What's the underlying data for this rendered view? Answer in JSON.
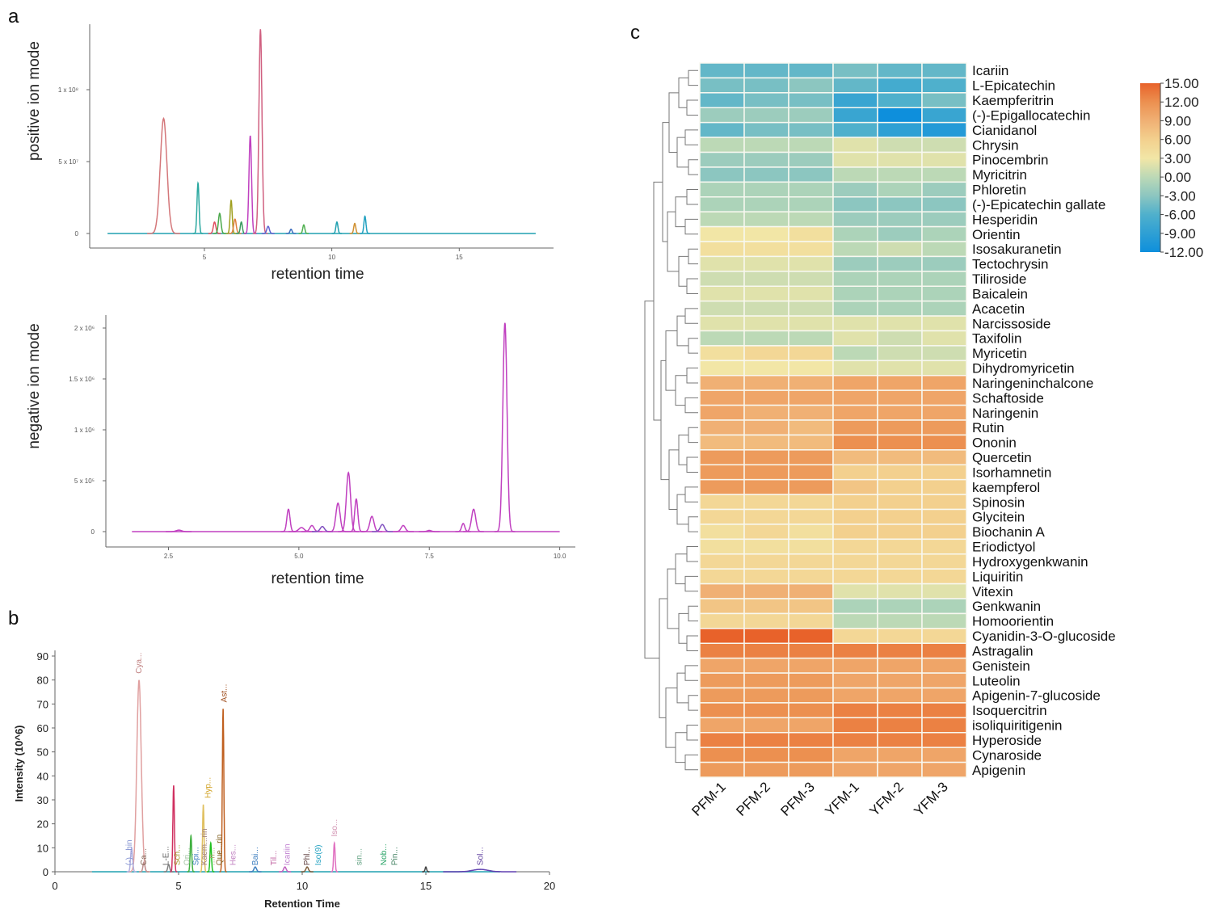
{
  "panels": {
    "a": "a",
    "b": "b",
    "c": "c"
  },
  "chart_data": [
    {
      "type": "line",
      "id": "positive",
      "ylabel": "positive ion mode",
      "xlabel": "retention time",
      "xlim": [
        0.5,
        18.7
      ],
      "ylim": [
        -20000000.0,
        150000000.0
      ],
      "xticks": [
        {
          "v": 5,
          "label": "5"
        },
        {
          "v": 10,
          "label": "10"
        },
        {
          "v": 15,
          "label": "15"
        }
      ],
      "yticks": [
        {
          "v": 0,
          "label": "0"
        },
        {
          "v": 50000000,
          "label": "5 x 10⁷"
        },
        {
          "v": 100000000,
          "label": "1 x 10⁸"
        }
      ],
      "baseline": [
        1.2,
        18
      ],
      "peaks": [
        [
          3.4,
          80000000,
          0.13,
          "#d4777a"
        ],
        [
          4.75,
          35000000,
          0.04,
          "#2aa8a0"
        ],
        [
          5.4,
          8000000,
          0.05,
          "#e05060"
        ],
        [
          5.6,
          14000000,
          0.05,
          "#4aa84a"
        ],
        [
          6.05,
          23000000,
          0.04,
          "#a0a020"
        ],
        [
          6.2,
          10000000,
          0.05,
          "#e08040"
        ],
        [
          6.45,
          8000000,
          0.04,
          "#3a9a60"
        ],
        [
          6.8,
          68000000,
          0.05,
          "#c040c0"
        ],
        [
          7.2,
          142000000,
          0.06,
          "#d06080"
        ],
        [
          7.5,
          5000000,
          0.05,
          "#6060d0"
        ],
        [
          8.4,
          3000000,
          0.04,
          "#4070c0"
        ],
        [
          8.9,
          6000000,
          0.04,
          "#50b050"
        ],
        [
          10.2,
          8000000,
          0.04,
          "#20a0b0"
        ],
        [
          10.9,
          7000000,
          0.04,
          "#d09030"
        ],
        [
          11.3,
          12000000,
          0.04,
          "#20a0c0"
        ]
      ]
    },
    {
      "type": "line",
      "id": "negative",
      "ylabel": "negative ion mode",
      "xlabel": "retention time",
      "xlim": [
        1.3,
        10.3
      ],
      "ylim": [
        -100000,
        2200000
      ],
      "xticks": [
        {
          "v": 2.5,
          "label": "2.5"
        },
        {
          "v": 5,
          "label": "5.0"
        },
        {
          "v": 7.5,
          "label": "7.5"
        },
        {
          "v": 10,
          "label": "10.0"
        }
      ],
      "yticks": [
        {
          "v": 0,
          "label": "0"
        },
        {
          "v": 500000,
          "label": "5 x 10⁵"
        },
        {
          "v": 1000000,
          "label": "1 x 10⁶"
        },
        {
          "v": 1500000,
          "label": "1.5 x 10⁶"
        },
        {
          "v": 2000000,
          "label": "2 x 10⁶"
        }
      ],
      "baseline": [
        1.8,
        10
      ],
      "peaks": [
        [
          2.7,
          15000,
          0.05,
          "#c040c0"
        ],
        [
          4.8,
          220000,
          0.03,
          "#c040c0"
        ],
        [
          5.05,
          40000,
          0.05,
          "#c040c0"
        ],
        [
          5.25,
          60000,
          0.04,
          "#c040c0"
        ],
        [
          5.45,
          50000,
          0.04,
          "#8050c0"
        ],
        [
          5.75,
          280000,
          0.04,
          "#c040c0"
        ],
        [
          5.95,
          580000,
          0.04,
          "#c040c0"
        ],
        [
          6.1,
          320000,
          0.03,
          "#c040c0"
        ],
        [
          6.4,
          150000,
          0.04,
          "#c040c0"
        ],
        [
          6.6,
          70000,
          0.04,
          "#8050c0"
        ],
        [
          7.0,
          60000,
          0.04,
          "#c040c0"
        ],
        [
          7.5,
          12000,
          0.04,
          "#c040c0"
        ],
        [
          8.15,
          80000,
          0.03,
          "#c040c0"
        ],
        [
          8.35,
          220000,
          0.04,
          "#c040c0"
        ],
        [
          8.95,
          2050000,
          0.04,
          "#c040c0"
        ]
      ]
    },
    {
      "type": "line",
      "id": "intensity",
      "ylabel": "Intensity (10^6)",
      "xlabel": "Retention Time",
      "xlim": [
        0,
        20
      ],
      "ylim": [
        0,
        90
      ],
      "xticks": [
        {
          "v": 0,
          "label": "0"
        },
        {
          "v": 5,
          "label": "5"
        },
        {
          "v": 10,
          "label": "10"
        },
        {
          "v": 15,
          "label": "15"
        },
        {
          "v": 20,
          "label": "20"
        }
      ],
      "yticks": [
        {
          "v": 0,
          "label": "0"
        },
        {
          "v": 10,
          "label": "10"
        },
        {
          "v": 20,
          "label": "20"
        },
        {
          "v": 30,
          "label": "30"
        },
        {
          "v": 40,
          "label": "40"
        },
        {
          "v": 50,
          "label": "50"
        },
        {
          "v": 60,
          "label": "60"
        },
        {
          "v": 70,
          "label": "70"
        },
        {
          "v": 80,
          "label": "80"
        },
        {
          "v": 90,
          "label": "90"
        }
      ],
      "baseline": [
        1.5,
        18
      ],
      "peaks": [
        [
          3.4,
          80,
          0.09,
          "#e0a0a0"
        ],
        [
          3.1,
          10,
          0.04,
          "#b0b0e0"
        ],
        [
          3.6,
          4,
          0.04,
          "#c09090"
        ],
        [
          4.6,
          3,
          0.04,
          "#808080"
        ],
        [
          4.8,
          36,
          0.03,
          "#d03060"
        ],
        [
          5.5,
          15,
          0.03,
          "#40b040"
        ],
        [
          6.0,
          28,
          0.03,
          "#e0c060"
        ],
        [
          6.3,
          12,
          0.03,
          "#20c020"
        ],
        [
          6.8,
          68,
          0.03,
          "#c06020"
        ],
        [
          8.1,
          2,
          0.05,
          "#4080c0"
        ],
        [
          9.3,
          2,
          0.05,
          "#c060c0"
        ],
        [
          10.2,
          2,
          0.05,
          "#806040"
        ],
        [
          11.3,
          12,
          0.03,
          "#e070c0"
        ],
        [
          15.0,
          2,
          0.03,
          "#404040"
        ],
        [
          17.2,
          1,
          0.3,
          "#6040b0"
        ]
      ],
      "annotations": [
        {
          "rt": 3.4,
          "y": 82,
          "text": "Cya...",
          "color": "#c08080"
        },
        {
          "rt": 3.0,
          "y": 2,
          "text": "(-)...hin",
          "color": "#8090d0"
        },
        {
          "rt": 3.6,
          "y": 2,
          "text": "Ca...",
          "color": "#806050"
        },
        {
          "rt": 4.5,
          "y": 2,
          "text": "L-E...",
          "color": "#606060"
        },
        {
          "rt": 4.95,
          "y": 2,
          "text": "Sch...",
          "color": "#a09020"
        },
        {
          "rt": 5.35,
          "y": 2,
          "text": "Ori...",
          "color": "#a0c0a0"
        },
        {
          "rt": 5.7,
          "y": 2,
          "text": "Spi...",
          "color": "#4080c0"
        },
        {
          "rt": 6.05,
          "y": 2,
          "text": "Kaem...rin",
          "color": "#a08080"
        },
        {
          "rt": 6.2,
          "y": 30,
          "text": "Hyp...",
          "color": "#d0a020"
        },
        {
          "rt": 6.35,
          "y": 2,
          "text": "...n...",
          "color": "#b0a070"
        },
        {
          "rt": 6.65,
          "y": 2,
          "text": "Que...rin",
          "color": "#806020"
        },
        {
          "rt": 6.85,
          "y": 70,
          "text": "Ast...",
          "color": "#a05020"
        },
        {
          "rt": 7.2,
          "y": 2,
          "text": "Hes...",
          "color": "#c080c0"
        },
        {
          "rt": 8.1,
          "y": 2,
          "text": "Bai...",
          "color": "#4080c0"
        },
        {
          "rt": 8.85,
          "y": 2,
          "text": "Til...",
          "color": "#c060a0"
        },
        {
          "rt": 9.4,
          "y": 2,
          "text": "Icariin",
          "color": "#c080d0"
        },
        {
          "rt": 10.2,
          "y": 2,
          "text": "Phl...",
          "color": "#604040"
        },
        {
          "rt": 10.65,
          "y": 2,
          "text": "Iso(9)",
          "color": "#20a0c0"
        },
        {
          "rt": 11.3,
          "y": 14,
          "text": "Iso...",
          "color": "#d090b0"
        },
        {
          "rt": 12.3,
          "y": 2,
          "text": "sin...",
          "color": "#60a080"
        },
        {
          "rt": 13.3,
          "y": 2,
          "text": "Nob...",
          "color": "#20a060"
        },
        {
          "rt": 13.75,
          "y": 2,
          "text": "Pin...",
          "color": "#408060"
        },
        {
          "rt": 17.2,
          "y": 2,
          "text": "Sol...",
          "color": "#6040a0"
        }
      ]
    },
    {
      "type": "heatmap",
      "id": "heatmap",
      "columns": [
        "PFM-1",
        "PFM-2",
        "PFM-3",
        "YFM-1",
        "YFM-2",
        "YFM-3"
      ],
      "rows": [
        "Icariin",
        "L-Epicatechin",
        "Kaempferitrin",
        "(-)-Epigallocatechin",
        "Cianidanol",
        "Chrysin",
        "Pinocembrin",
        "Myricitrin",
        "Phloretin",
        "(-)-Epicatechin gallate",
        "Hesperidin",
        "Orientin",
        "Isosakuranetin",
        "Tectochrysin",
        "Tiliroside",
        "Baicalein",
        "Acacetin",
        "Narcissoside",
        "Taxifolin",
        "Myricetin",
        "Dihydromyricetin",
        "Naringeninchalcone",
        "Schaftoside",
        "Naringenin",
        "Rutin",
        "Ononin",
        "Quercetin",
        "Isorhamnetin",
        "kaempferol",
        "Spinosin",
        "Glycitein",
        "Biochanin A",
        "Eriodictyol",
        "Hydroxygenkwanin",
        "Liquiritin",
        "Vitexin",
        "Genkwanin",
        "Homoorientin",
        "Cyanidin-3-O-glucoside",
        "Astragalin",
        "Genistein",
        "Luteolin",
        "Apigenin-7-glucoside",
        "Isoquercitrin",
        "isoliquiritigenin",
        "Hyperoside",
        "Cynaroside",
        "Apigenin"
      ],
      "values": [
        [
          -5,
          -5,
          -5,
          -4,
          -5,
          -5
        ],
        [
          -4,
          -4,
          -3,
          -5,
          -7,
          -6
        ],
        [
          -5,
          -4,
          -4,
          -8,
          -6,
          -4
        ],
        [
          -2,
          -2,
          -2,
          -8,
          -12,
          -8
        ],
        [
          -5,
          -4,
          -4,
          -6,
          -9,
          -10
        ],
        [
          0,
          0,
          0,
          2,
          1,
          1
        ],
        [
          -2,
          -2,
          -2,
          2,
          2,
          2
        ],
        [
          -3,
          -3,
          -3,
          0,
          0,
          0
        ],
        [
          -1,
          -1,
          -1,
          -2,
          -1,
          -2
        ],
        [
          -1,
          -1,
          -1,
          -3,
          -3,
          -3
        ],
        [
          0,
          0,
          0,
          -2,
          -2,
          -2
        ],
        [
          3,
          3,
          4,
          -1,
          -2,
          -1
        ],
        [
          4,
          4,
          4,
          0,
          1,
          0
        ],
        [
          2,
          2,
          2,
          -2,
          -2,
          -2
        ],
        [
          1,
          1,
          1,
          -1,
          -1,
          -1
        ],
        [
          2,
          2,
          2,
          -1,
          -1,
          -1
        ],
        [
          1,
          1,
          1,
          -1,
          -1,
          -1
        ],
        [
          2,
          2,
          2,
          2,
          2,
          2
        ],
        [
          0,
          0,
          0,
          2,
          1,
          2
        ],
        [
          4,
          5,
          5,
          0,
          1,
          1
        ],
        [
          3,
          3,
          3,
          2,
          2,
          2
        ],
        [
          9,
          9,
          9,
          10,
          10,
          10
        ],
        [
          10,
          10,
          10,
          10,
          10,
          10
        ],
        [
          10,
          9,
          9,
          10,
          10,
          10
        ],
        [
          9,
          9,
          8,
          11,
          11,
          11
        ],
        [
          8,
          8,
          8,
          12,
          12,
          12
        ],
        [
          11,
          11,
          11,
          8,
          8,
          8
        ],
        [
          11,
          11,
          11,
          6,
          6,
          6
        ],
        [
          11,
          11,
          11,
          7,
          6,
          6
        ],
        [
          5,
          5,
          5,
          6,
          6,
          6
        ],
        [
          5,
          5,
          5,
          6,
          6,
          6
        ],
        [
          4,
          5,
          4,
          6,
          6,
          6
        ],
        [
          4,
          4,
          4,
          5,
          5,
          5
        ],
        [
          5,
          5,
          5,
          5,
          5,
          5
        ],
        [
          5,
          5,
          5,
          5,
          5,
          5
        ],
        [
          9,
          9,
          9,
          2,
          2,
          2
        ],
        [
          7,
          7,
          7,
          -1,
          -1,
          -1
        ],
        [
          5,
          5,
          5,
          0,
          0,
          0
        ],
        [
          15,
          15,
          15,
          5,
          5,
          5
        ],
        [
          13,
          13,
          13,
          13,
          13,
          13
        ],
        [
          10,
          10,
          10,
          10,
          10,
          10
        ],
        [
          11,
          11,
          11,
          10,
          10,
          10
        ],
        [
          11,
          11,
          11,
          10,
          10,
          10
        ],
        [
          12,
          12,
          12,
          13,
          13,
          13
        ],
        [
          10,
          10,
          10,
          13,
          13,
          13
        ],
        [
          13,
          13,
          13,
          13,
          13,
          13
        ],
        [
          12,
          12,
          12,
          10,
          10,
          10
        ],
        [
          11,
          11,
          11,
          10,
          10,
          10
        ]
      ],
      "colorbar": {
        "range": [
          -12,
          15
        ],
        "ticks": [
          "15.00",
          "12.00",
          "9.00",
          "6.00",
          "3.00",
          "0.00",
          "-3.00",
          "-6.00",
          "-9.00",
          "-12.00"
        ],
        "stops": [
          [
            -12,
            "#0e8fdc"
          ],
          [
            -6,
            "#4fb0cc"
          ],
          [
            -3,
            "#8cc6c0"
          ],
          [
            0,
            "#bcd9b6"
          ],
          [
            3,
            "#f2e6a6"
          ],
          [
            6,
            "#f3d08e"
          ],
          [
            9,
            "#f0b074"
          ],
          [
            12,
            "#ec9050"
          ],
          [
            15,
            "#e8622a"
          ]
        ]
      }
    }
  ]
}
